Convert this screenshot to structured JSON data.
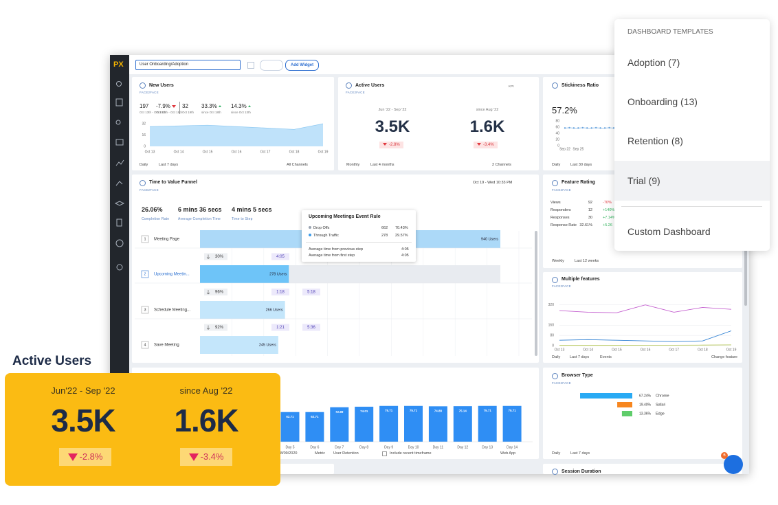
{
  "app": {
    "logo": "PX",
    "dashboard": "User Onboarding/Adoption",
    "add_widget": "Add Widget"
  },
  "templates": {
    "heading": "DASHBOARD TEMPLATES",
    "items": [
      "Adoption (7)",
      "Onboarding (13)",
      "Retention (8)",
      "Trial (9)"
    ],
    "custom": "Custom Dashboard"
  },
  "highlight_card": {
    "title": "Active Users",
    "periods": [
      {
        "label": "Jun'22 - Sep '22",
        "value": "3.5K",
        "change": "-2.8%"
      },
      {
        "label": "since Aug '22",
        "value": "1.6K",
        "change": "-3.4%"
      }
    ]
  },
  "new_users": {
    "source": "FACE2FACE",
    "stats": [
      {
        "value": "197",
        "label": "Oct 13th - Oct 19th"
      },
      {
        "value": "-7.9%",
        "label": "Oct 13th - Oct 19th"
      },
      {
        "value": "32",
        "label": "Oct 19th"
      },
      {
        "value": "33.3%",
        "label": "since Oct 18th"
      },
      {
        "value": "14.3%",
        "label": "since Oct 13th"
      }
    ],
    "footer": [
      "Daily",
      "Last 7 days",
      "All Channels"
    ]
  },
  "active_users": {
    "title": "Active Users",
    "source": "FACE2FACE",
    "tag": "KPI",
    "periods": [
      {
        "label": "Jun '22 - Sep '22",
        "value": "3.5K",
        "change": "-2.8%"
      },
      {
        "label": "since Aug '22",
        "value": "1.6K",
        "change": "-3.4%"
      }
    ],
    "footer": [
      "Monthly",
      "Last 4 months",
      "2 Channels"
    ]
  },
  "stickiness": {
    "value": "57.2%",
    "footer": [
      "Daily",
      "Last 30 days"
    ]
  },
  "funnel": {
    "source": "FACE2FACE",
    "date": "Oct 19 - Wed 10:33 PM",
    "stats": [
      {
        "value": "26.06%",
        "label": "Completion Rate"
      },
      {
        "value": "6 mins 36 secs",
        "label": "Average Completion Time"
      },
      {
        "value": "4 mins 5 secs",
        "label": "Time to Step"
      }
    ],
    "step_numbers": [
      "1",
      "2",
      "3",
      "4"
    ],
    "transitions": [
      {
        "rate": "30%",
        "times": [
          "4:05"
        ]
      },
      {
        "rate": "96%",
        "times": [
          "1:18",
          "5:18"
        ]
      },
      {
        "rate": "92%",
        "times": [
          "1:21",
          "5:36"
        ]
      }
    ],
    "tooltip": {
      "title": "Upcoming Meetings Event Rule",
      "rows": [
        {
          "label": "Drop Offs",
          "count": "662",
          "share": "70.43%"
        },
        {
          "label": "Through Traffic",
          "count": "278",
          "share": "29.57%"
        }
      ],
      "averages": [
        {
          "label": "Average time from previous step",
          "value": "4:05"
        },
        {
          "label": "Average time from first step",
          "value": "4:05"
        }
      ]
    }
  },
  "feature_rating": {
    "title": "Feature Rating",
    "source": "FACE2FACE",
    "rows": [
      {
        "name": "Views",
        "value": "92",
        "change": "-70%"
      },
      {
        "name": "Responders",
        "value": "12",
        "change": "+140%"
      },
      {
        "name": "Responses",
        "value": "30",
        "change": "+7.14%"
      },
      {
        "name": "Response Rate",
        "value": "32.61%",
        "change": "+5.26"
      }
    ],
    "footer": [
      "Weekly",
      "Last 12 weeks"
    ]
  },
  "multiple_features": {
    "source": "FACE2FACE",
    "footer": [
      "Daily",
      "Last 7 days",
      "Events",
      "Change feature"
    ]
  },
  "retention": {
    "footer": [
      "8/09/2020",
      "Metric",
      "User Retention",
      "Include recent timeframe",
      "Web App"
    ]
  },
  "browser_type": {
    "source": "FACE2FACE",
    "footer": [
      "Daily",
      "Last 7 days"
    ]
  },
  "session_duration": {
    "title": "Session Duration"
  },
  "assistant": {
    "badge": "6"
  },
  "chart_data": [
    {
      "type": "area",
      "title": "New Users",
      "categories": [
        "Oct 13",
        "Oct 14",
        "Oct 15",
        "Oct 16",
        "Oct 17",
        "Oct 18",
        "Oct 19"
      ],
      "values": [
        28,
        29,
        30,
        28,
        26,
        24,
        32
      ],
      "ylim": [
        0,
        36
      ],
      "yticks": [
        0,
        16,
        32
      ],
      "color": "#bfe2fa"
    },
    {
      "type": "line",
      "title": "Stickiness Ratio",
      "categories": [
        "Sep 22",
        null,
        null,
        "Sep 25",
        null,
        null,
        null,
        null,
        null,
        null,
        null,
        null
      ],
      "values": [
        57,
        58,
        57,
        57,
        58,
        57,
        57,
        58,
        57,
        57,
        58,
        57
      ],
      "ylim": [
        0,
        80
      ],
      "yticks": [
        0,
        20,
        40,
        60,
        80
      ],
      "color": "#6aa5de"
    },
    {
      "type": "funnel",
      "title": "Time to Value Funnel",
      "categories": [
        "Meeting Page",
        "Upcoming Meetin...",
        "Schedule Meeting...",
        "Save Meeting"
      ],
      "values": [
        940,
        278,
        266,
        245
      ],
      "value_labels": [
        "940 Users",
        "278 Users",
        "266 Users",
        "245 Users"
      ],
      "colors": [
        "#acd9f8",
        "#6ec4f8",
        "#c4e6fb",
        "#c4e6fb"
      ]
    },
    {
      "type": "line",
      "title": "Multiple features",
      "categories": [
        "Oct 13",
        "Oct 14",
        "Oct 15",
        "Oct 16",
        "Oct 17",
        "Oct 18",
        "Oct 19"
      ],
      "series": [
        {
          "color": "#c45fcf",
          "values": [
            275,
            262,
            258,
            320,
            262,
            300,
            285
          ]
        },
        {
          "color": "#2d7fd3",
          "values": [
            42,
            47,
            42,
            37,
            32,
            37,
            116
          ]
        },
        {
          "color": "#b6c75a",
          "values": [
            2,
            2,
            2,
            3,
            3,
            4,
            6
          ]
        }
      ],
      "ylim": [
        0,
        340
      ],
      "yticks": [
        0,
        80,
        160,
        320
      ],
      "grid": true
    },
    {
      "type": "bar",
      "categories": [
        "Day 5",
        "Day 6",
        "Day 7",
        "Day 8",
        "Day 9",
        "Day 10",
        "Day 11",
        "Day 12",
        "Day 13",
        "Day 14"
      ],
      "values": [
        62.71,
        62.71,
        72.89,
        74.01,
        75.71,
        75.71,
        74.88,
        75.14,
        75.71,
        75.71
      ],
      "ylim": [
        0,
        100
      ],
      "color": "#2f8ef4"
    },
    {
      "type": "hbar",
      "title": "Browser Type",
      "categories": [
        "Chrome",
        "Safari",
        "Edge"
      ],
      "values": [
        67.24,
        19.4,
        13.36
      ],
      "value_labels": [
        "67.24%",
        "19.40%",
        "13.36%"
      ],
      "colors": [
        "#29aaf4",
        "#f7861f",
        "#5fcd6b"
      ]
    }
  ]
}
